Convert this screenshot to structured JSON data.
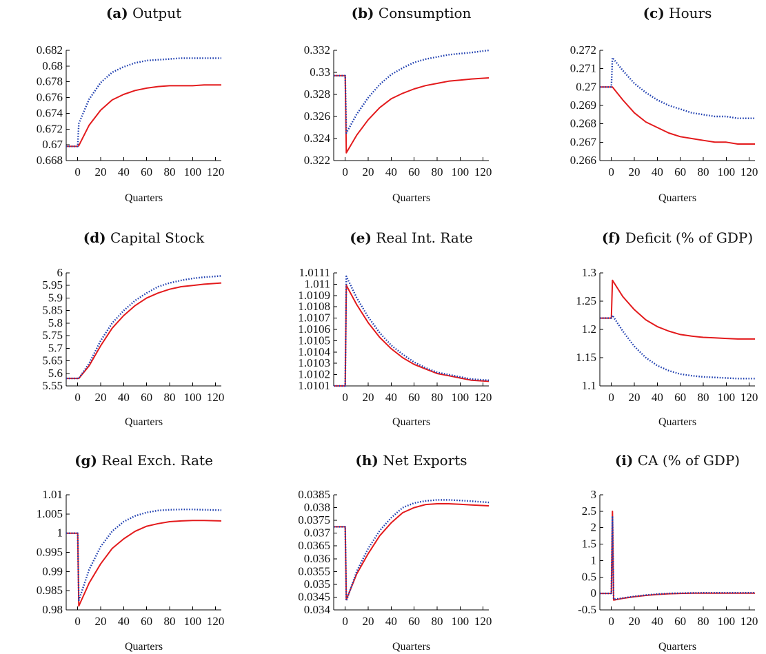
{
  "figure": {
    "rows": 3,
    "cols": 3
  },
  "colors": {
    "series_a": "#e31a1c",
    "series_b": "#1f3fb0"
  },
  "chart_data": [
    {
      "panel_tag": "(a)",
      "title": "Output",
      "type": "line",
      "xlabel": "Quarters",
      "xlim": [
        -10,
        125
      ],
      "ylim": [
        0.668,
        0.682
      ],
      "xticks": [
        0,
        20,
        40,
        60,
        80,
        100,
        120
      ],
      "xtick_labels": [
        "0",
        "20",
        "40",
        "60",
        "80",
        "100",
        "120"
      ],
      "yticks": [
        0.668,
        0.67,
        0.672,
        0.674,
        0.676,
        0.678,
        0.68,
        0.682
      ],
      "ytick_labels": [
        "0.668",
        "0.67",
        "0.672",
        "0.674",
        "0.676",
        "0.678",
        "0.68",
        "0.682"
      ],
      "series": [
        {
          "color": "#e31a1c",
          "style": "solid",
          "x": [
            -10,
            0,
            1,
            10,
            20,
            30,
            40,
            50,
            60,
            70,
            80,
            90,
            100,
            110,
            125
          ],
          "y": [
            0.6698,
            0.6698,
            0.6699,
            0.6725,
            0.6744,
            0.6757,
            0.6764,
            0.6769,
            0.6772,
            0.6774,
            0.6775,
            0.6775,
            0.6775,
            0.6776,
            0.6776
          ]
        },
        {
          "color": "#1f3fb0",
          "style": "dotted",
          "x": [
            -10,
            0,
            1,
            10,
            20,
            30,
            40,
            50,
            60,
            70,
            80,
            90,
            100,
            110,
            125
          ],
          "y": [
            0.6698,
            0.6698,
            0.6727,
            0.6758,
            0.6779,
            0.6792,
            0.6799,
            0.6804,
            0.6807,
            0.6808,
            0.6809,
            0.681,
            0.681,
            0.681,
            0.681
          ]
        }
      ]
    },
    {
      "panel_tag": "(b)",
      "title": "Consumption",
      "type": "line",
      "xlabel": "Quarters",
      "xlim": [
        -10,
        125
      ],
      "ylim": [
        0.322,
        0.332
      ],
      "xticks": [
        0,
        20,
        40,
        60,
        80,
        100,
        120
      ],
      "xtick_labels": [
        "0",
        "20",
        "40",
        "60",
        "80",
        "100",
        "120"
      ],
      "yticks": [
        0.322,
        0.324,
        0.326,
        0.328,
        0.33,
        0.332
      ],
      "ytick_labels": [
        "0.322",
        "0.324",
        "0.326",
        "0.328",
        "0.33",
        "0.332"
      ],
      "series": [
        {
          "color": "#e31a1c",
          "style": "solid",
          "x": [
            -10,
            0,
            1,
            10,
            20,
            30,
            40,
            50,
            60,
            70,
            80,
            90,
            100,
            110,
            125
          ],
          "y": [
            0.3297,
            0.3297,
            0.3227,
            0.3243,
            0.3257,
            0.3268,
            0.3276,
            0.3281,
            0.3285,
            0.3288,
            0.329,
            0.3292,
            0.3293,
            0.3294,
            0.3295
          ]
        },
        {
          "color": "#1f3fb0",
          "style": "dotted",
          "x": [
            -10,
            0,
            1,
            10,
            20,
            30,
            40,
            50,
            60,
            70,
            80,
            90,
            100,
            110,
            125
          ],
          "y": [
            0.3297,
            0.3297,
            0.3245,
            0.3262,
            0.3277,
            0.3289,
            0.3298,
            0.3304,
            0.3309,
            0.3312,
            0.3314,
            0.3316,
            0.3317,
            0.3318,
            0.332
          ]
        }
      ]
    },
    {
      "panel_tag": "(c)",
      "title": "Hours",
      "type": "line",
      "xlabel": "Quarters",
      "xlim": [
        -10,
        125
      ],
      "ylim": [
        0.266,
        0.272
      ],
      "xticks": [
        0,
        20,
        40,
        60,
        80,
        100,
        120
      ],
      "xtick_labels": [
        "0",
        "20",
        "40",
        "60",
        "80",
        "100",
        "120"
      ],
      "yticks": [
        0.266,
        0.267,
        0.268,
        0.269,
        0.27,
        0.271,
        0.272
      ],
      "ytick_labels": [
        "0.266",
        "0.267",
        "0.268",
        "0.269",
        "0.27",
        "0.271",
        "0.272"
      ],
      "series": [
        {
          "color": "#e31a1c",
          "style": "solid",
          "x": [
            -10,
            0,
            1,
            10,
            20,
            30,
            40,
            50,
            60,
            70,
            80,
            90,
            100,
            110,
            125
          ],
          "y": [
            0.27,
            0.27,
            0.27,
            0.2693,
            0.2686,
            0.2681,
            0.2678,
            0.2675,
            0.2673,
            0.2672,
            0.2671,
            0.267,
            0.267,
            0.2669,
            0.2669
          ]
        },
        {
          "color": "#1f3fb0",
          "style": "dotted",
          "x": [
            -10,
            0,
            1,
            10,
            20,
            30,
            40,
            50,
            60,
            70,
            80,
            90,
            100,
            110,
            125
          ],
          "y": [
            0.27,
            0.27,
            0.2716,
            0.2709,
            0.2702,
            0.2697,
            0.2693,
            0.269,
            0.2688,
            0.2686,
            0.2685,
            0.2684,
            0.2684,
            0.2683,
            0.2683
          ]
        }
      ]
    },
    {
      "panel_tag": "(d)",
      "title": "Capital Stock",
      "type": "line",
      "xlabel": "Quarters",
      "xlim": [
        -10,
        125
      ],
      "ylim": [
        5.55,
        6.0
      ],
      "xticks": [
        0,
        20,
        40,
        60,
        80,
        100,
        120
      ],
      "xtick_labels": [
        "0",
        "20",
        "40",
        "60",
        "80",
        "100",
        "120"
      ],
      "yticks": [
        5.55,
        5.6,
        5.65,
        5.7,
        5.75,
        5.8,
        5.85,
        5.9,
        5.95,
        6.0
      ],
      "ytick_labels": [
        "5.55",
        "5.6",
        "5.65",
        "5.7",
        "5.75",
        "5.8",
        "5.85",
        "5.9",
        "5.95",
        "6"
      ],
      "series": [
        {
          "color": "#e31a1c",
          "style": "solid",
          "x": [
            -10,
            0,
            1,
            10,
            20,
            30,
            40,
            50,
            60,
            70,
            80,
            90,
            100,
            110,
            125
          ],
          "y": [
            5.58,
            5.58,
            5.58,
            5.63,
            5.71,
            5.78,
            5.83,
            5.87,
            5.9,
            5.92,
            5.935,
            5.945,
            5.95,
            5.955,
            5.96
          ]
        },
        {
          "color": "#1f3fb0",
          "style": "dotted",
          "x": [
            -10,
            0,
            1,
            10,
            20,
            30,
            40,
            50,
            60,
            70,
            80,
            90,
            100,
            110,
            125
          ],
          "y": [
            5.58,
            5.58,
            5.58,
            5.64,
            5.73,
            5.8,
            5.85,
            5.89,
            5.92,
            5.945,
            5.96,
            5.97,
            5.978,
            5.983,
            5.988
          ]
        }
      ]
    },
    {
      "panel_tag": "(e)",
      "title": "Real Int. Rate",
      "type": "line",
      "xlabel": "Quarters",
      "xlim": [
        -10,
        125
      ],
      "ylim": [
        1.0101,
        1.0111
      ],
      "xticks": [
        0,
        20,
        40,
        60,
        80,
        100,
        120
      ],
      "xtick_labels": [
        "0",
        "20",
        "40",
        "60",
        "80",
        "100",
        "120"
      ],
      "yticks": [
        1.0101,
        1.0102,
        1.0103,
        1.0104,
        1.0105,
        1.0106,
        1.0107,
        1.0108,
        1.0109,
        1.011,
        1.0111
      ],
      "ytick_labels": [
        "1.0101",
        "1.0102",
        "1.0103",
        "1.0104",
        "1.0105",
        "1.0106",
        "1.0107",
        "1.0108",
        "1.0109",
        "1.011",
        "1.0111"
      ],
      "series": [
        {
          "color": "#e31a1c",
          "style": "solid",
          "x": [
            -10,
            0,
            1,
            10,
            20,
            30,
            40,
            50,
            60,
            70,
            80,
            90,
            100,
            110,
            125
          ],
          "y": [
            1.0101,
            1.0101,
            1.01099,
            1.01082,
            1.01066,
            1.01053,
            1.01043,
            1.01035,
            1.01029,
            1.01025,
            1.01021,
            1.01019,
            1.01017,
            1.01015,
            1.01014
          ]
        },
        {
          "color": "#1f3fb0",
          "style": "dotted",
          "x": [
            -10,
            0,
            1,
            10,
            20,
            30,
            40,
            50,
            60,
            70,
            80,
            90,
            100,
            110,
            125
          ],
          "y": [
            1.0101,
            1.0101,
            1.01107,
            1.01088,
            1.01071,
            1.01057,
            1.01046,
            1.01038,
            1.01031,
            1.01026,
            1.01022,
            1.0102,
            1.01018,
            1.01016,
            1.01015
          ]
        }
      ]
    },
    {
      "panel_tag": "(f)",
      "title": "Deficit (% of GDP)",
      "type": "line",
      "xlabel": "Quarters",
      "xlim": [
        -10,
        125
      ],
      "ylim": [
        1.1,
        1.3
      ],
      "xticks": [
        0,
        20,
        40,
        60,
        80,
        100,
        120
      ],
      "xtick_labels": [
        "0",
        "20",
        "40",
        "60",
        "80",
        "100",
        "120"
      ],
      "yticks": [
        1.1,
        1.15,
        1.2,
        1.25,
        1.3
      ],
      "ytick_labels": [
        "1.1",
        "1.15",
        "1.2",
        "1.25",
        "1.3"
      ],
      "series": [
        {
          "color": "#e31a1c",
          "style": "solid",
          "x": [
            -10,
            0,
            1,
            10,
            20,
            30,
            40,
            50,
            60,
            70,
            80,
            90,
            100,
            110,
            125
          ],
          "y": [
            1.22,
            1.22,
            1.287,
            1.258,
            1.235,
            1.217,
            1.205,
            1.197,
            1.191,
            1.188,
            1.186,
            1.185,
            1.184,
            1.183,
            1.183
          ]
        },
        {
          "color": "#1f3fb0",
          "style": "dotted",
          "x": [
            -10,
            0,
            1,
            10,
            20,
            30,
            40,
            50,
            60,
            70,
            80,
            90,
            100,
            110,
            125
          ],
          "y": [
            1.22,
            1.22,
            1.225,
            1.197,
            1.17,
            1.15,
            1.136,
            1.127,
            1.121,
            1.118,
            1.116,
            1.115,
            1.114,
            1.113,
            1.113
          ]
        }
      ]
    },
    {
      "panel_tag": "(g)",
      "title": "Real Exch. Rate",
      "type": "line",
      "xlabel": "Quarters",
      "xlim": [
        -10,
        125
      ],
      "ylim": [
        0.98,
        1.01
      ],
      "xticks": [
        0,
        20,
        40,
        60,
        80,
        100,
        120
      ],
      "xtick_labels": [
        "0",
        "20",
        "40",
        "60",
        "80",
        "100",
        "120"
      ],
      "yticks": [
        0.98,
        0.985,
        0.99,
        0.995,
        1.0,
        1.005,
        1.01
      ],
      "ytick_labels": [
        "0.98",
        "0.985",
        "0.99",
        "0.995",
        "1",
        "1.005",
        "1.01"
      ],
      "series": [
        {
          "color": "#e31a1c",
          "style": "solid",
          "x": [
            -10,
            0,
            1,
            10,
            20,
            30,
            40,
            50,
            60,
            70,
            80,
            90,
            100,
            110,
            125
          ],
          "y": [
            1.0,
            1.0,
            0.981,
            0.987,
            0.992,
            0.996,
            0.9985,
            1.0005,
            1.0018,
            1.0025,
            1.003,
            1.0032,
            1.0033,
            1.0033,
            1.0032
          ]
        },
        {
          "color": "#1f3fb0",
          "style": "dotted",
          "x": [
            -10,
            0,
            1,
            10,
            20,
            30,
            40,
            50,
            60,
            70,
            80,
            90,
            100,
            110,
            125
          ],
          "y": [
            1.0,
            1.0,
            0.9825,
            0.9905,
            0.9965,
            1.0005,
            1.003,
            1.0045,
            1.0054,
            1.0059,
            1.0061,
            1.0062,
            1.0062,
            1.0061,
            1.006
          ]
        }
      ]
    },
    {
      "panel_tag": "(h)",
      "title": "Net Exports",
      "type": "line",
      "xlabel": "Quarters",
      "xlim": [
        -10,
        125
      ],
      "ylim": [
        0.034,
        0.0385
      ],
      "xticks": [
        0,
        20,
        40,
        60,
        80,
        100,
        120
      ],
      "xtick_labels": [
        "0",
        "20",
        "40",
        "60",
        "80",
        "100",
        "120"
      ],
      "yticks": [
        0.034,
        0.0345,
        0.035,
        0.0355,
        0.036,
        0.0365,
        0.037,
        0.0375,
        0.038,
        0.0385
      ],
      "ytick_labels": [
        "0.034",
        "0.0345",
        "0.035",
        "0.0355",
        "0.036",
        "0.0365",
        "0.037",
        "0.0375",
        "0.038",
        "0.0385"
      ],
      "series": [
        {
          "color": "#e31a1c",
          "style": "solid",
          "x": [
            -10,
            0,
            1,
            10,
            20,
            30,
            40,
            50,
            60,
            70,
            80,
            90,
            100,
            110,
            125
          ],
          "y": [
            0.03725,
            0.03725,
            0.0344,
            0.0354,
            0.0362,
            0.0369,
            0.0374,
            0.0378,
            0.038,
            0.03812,
            0.03815,
            0.03815,
            0.03813,
            0.0381,
            0.03807
          ]
        },
        {
          "color": "#1f3fb0",
          "style": "dotted",
          "x": [
            -10,
            0,
            1,
            10,
            20,
            30,
            40,
            50,
            60,
            70,
            80,
            90,
            100,
            110,
            125
          ],
          "y": [
            0.03725,
            0.03725,
            0.03435,
            0.0355,
            0.0364,
            0.0371,
            0.0376,
            0.038,
            0.03818,
            0.03826,
            0.0383,
            0.0383,
            0.03828,
            0.03825,
            0.0382
          ]
        }
      ]
    },
    {
      "panel_tag": "(i)",
      "title": "CA (% of GDP)",
      "type": "line",
      "xlabel": "Quarters",
      "xlim": [
        -10,
        125
      ],
      "ylim": [
        -0.5,
        3.0
      ],
      "xticks": [
        0,
        20,
        40,
        60,
        80,
        100,
        120
      ],
      "xtick_labels": [
        "0",
        "20",
        "40",
        "60",
        "80",
        "100",
        "120"
      ],
      "yticks": [
        -0.5,
        0,
        0.5,
        1,
        1.5,
        2,
        2.5,
        3
      ],
      "ytick_labels": [
        "-0.5",
        "0",
        "0.5",
        "1",
        "1.5",
        "2",
        "2.5",
        "3"
      ],
      "series": [
        {
          "color": "#e31a1c",
          "style": "solid",
          "x": [
            -10,
            0,
            1,
            2,
            4,
            10,
            20,
            30,
            40,
            50,
            60,
            70,
            80,
            90,
            100,
            110,
            125
          ],
          "y": [
            0,
            0,
            2.5,
            -0.2,
            -0.19,
            -0.15,
            -0.1,
            -0.06,
            -0.03,
            -0.01,
            0,
            0.01,
            0.01,
            0.01,
            0.01,
            0.01,
            0.01
          ]
        },
        {
          "color": "#1f3fb0",
          "style": "dotted",
          "x": [
            -10,
            0,
            1,
            2,
            4,
            10,
            20,
            30,
            40,
            50,
            60,
            70,
            80,
            90,
            100,
            110,
            125
          ],
          "y": [
            0,
            0,
            2.35,
            -0.18,
            -0.17,
            -0.14,
            -0.09,
            -0.05,
            -0.02,
            0,
            0.01,
            0.015,
            0.02,
            0.02,
            0.02,
            0.02,
            0.02
          ]
        }
      ]
    }
  ]
}
